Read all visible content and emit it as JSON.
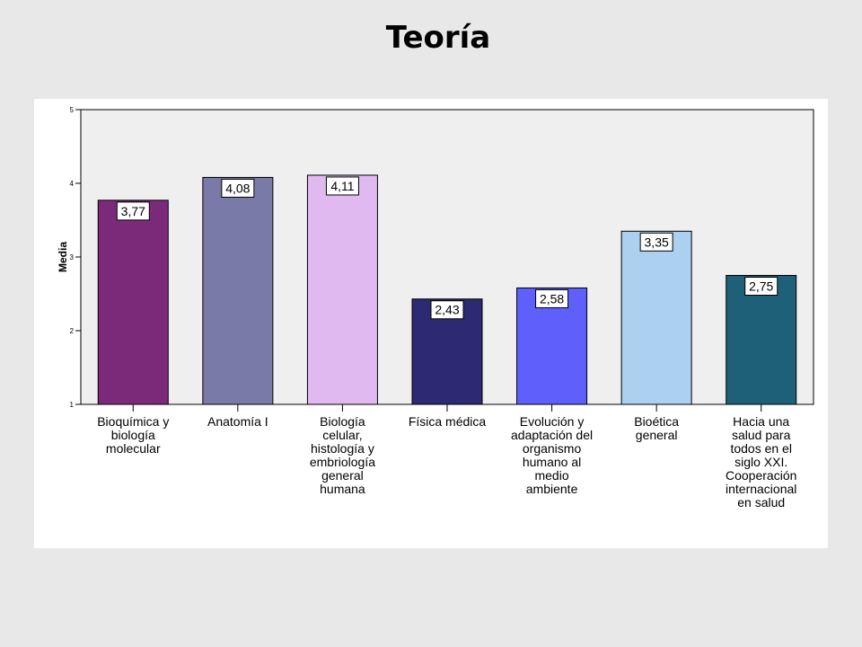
{
  "page": {
    "title": "Teoría"
  },
  "chart_data": {
    "type": "bar",
    "title": "Teoría",
    "xlabel": "",
    "ylabel": "Media",
    "ylim": [
      1,
      5
    ],
    "yticks": [
      1,
      2,
      3,
      4,
      5
    ],
    "grid": false,
    "categories": [
      "Bioquímica y biología molecular",
      "Anatomía I",
      "Biología celular, histología y embriología general humana",
      "Física médica",
      "Evolución y adaptación del organismo humano al medio ambiente",
      "Bioética general",
      "Hacia una salud para todos en el siglo XXI. Cooperación internacional en salud"
    ],
    "category_lines": [
      [
        "Bioquímica y",
        "biología",
        "molecular"
      ],
      [
        "Anatomía I"
      ],
      [
        "Biología",
        "celular,",
        "histología y",
        "embriología",
        "general",
        "humana"
      ],
      [
        "Física médica"
      ],
      [
        "Evolución y",
        "adaptación del",
        "organismo",
        "humano al",
        "medio",
        "ambiente"
      ],
      [
        "Bioética",
        "general"
      ],
      [
        "Hacia una",
        "salud para",
        "todos en el",
        "siglo XXI.",
        "Cooperación",
        "internacional",
        "en salud"
      ]
    ],
    "values": [
      3.77,
      4.08,
      4.11,
      2.43,
      2.58,
      3.35,
      2.75
    ],
    "value_labels": [
      "3,77",
      "4,08",
      "4,11",
      "2,43",
      "2,58",
      "3,35",
      "2,75"
    ],
    "colors": [
      "#7b2a7a",
      "#7a7aa8",
      "#dfb9f0",
      "#2b2a72",
      "#5f5ffc",
      "#acd0ef",
      "#1e6078"
    ],
    "plot_background": "#efefef"
  }
}
